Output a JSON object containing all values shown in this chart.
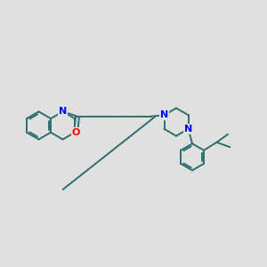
{
  "background_color": "#e0e0e0",
  "bond_color": "#2d6e6e",
  "nitrogen_color": "#0000ff",
  "oxygen_color": "#ff0000",
  "line_width": 1.4,
  "figsize": [
    3.0,
    3.0
  ],
  "dpi": 100,
  "xlim": [
    0,
    10
  ],
  "ylim": [
    1.5,
    8.5
  ]
}
